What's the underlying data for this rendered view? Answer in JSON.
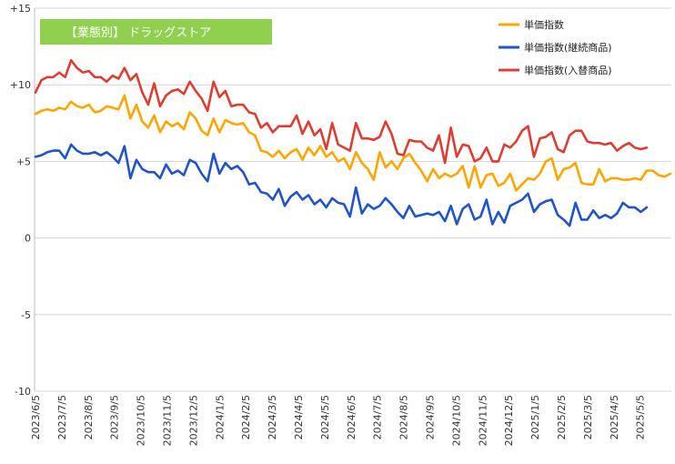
{
  "chart_data": {
    "type": "line",
    "title": "【業態別】 ドラッグストア",
    "title_bg_color": "#8fd14f",
    "ylim": [
      -10,
      15
    ],
    "y_ticks": [
      -10,
      -5,
      0,
      5,
      10,
      15
    ],
    "y_tick_labels": [
      "-10",
      "-5",
      "0",
      "+5",
      "+10",
      "+15"
    ],
    "x_tick_labels": [
      "2023/6/5",
      "2023/7/5",
      "2023/8/5",
      "2023/9/5",
      "2023/10/5",
      "2023/11/5",
      "2023/12/5",
      "2024/1/5",
      "2024/2/5",
      "2024/3/5",
      "2024/4/5",
      "2024/5/5",
      "2024/6/5",
      "2024/7/5",
      "2024/8/5",
      "2024/9/5",
      "2024/10/5",
      "2024/11/5",
      "2024/12/5",
      "2025/1/5",
      "2025/2/5",
      "2025/3/5",
      "2025/4/5",
      "2025/5/5"
    ],
    "grid": "horizontal",
    "legend_position": "top-right",
    "series": [
      {
        "name": "単価指数",
        "color": "#ffa500",
        "values": [
          8.1,
          8.3,
          8.4,
          8.3,
          8.5,
          8.4,
          8.9,
          8.6,
          8.5,
          8.7,
          8.2,
          8.3,
          8.6,
          8.5,
          8.4,
          9.3,
          7.8,
          8.7,
          7.6,
          7.2,
          8.0,
          6.9,
          7.6,
          7.3,
          7.5,
          7.1,
          8.2,
          7.8,
          7.0,
          6.7,
          7.8,
          6.9,
          7.7,
          7.5,
          7.4,
          7.5,
          6.9,
          6.7,
          5.7,
          5.6,
          5.3,
          5.7,
          5.2,
          5.6,
          5.8,
          5.1,
          5.9,
          5.4,
          6.0,
          5.3,
          5.6,
          5.0,
          5.2,
          4.5,
          5.6,
          4.9,
          4.5,
          3.8,
          5.6,
          4.6,
          5.0,
          4.5,
          5.2,
          5.5,
          4.9,
          4.4,
          3.7,
          4.5,
          3.9,
          4.2,
          4.0,
          4.2,
          4.7,
          3.3,
          4.7,
          3.3,
          4.1,
          4.2,
          3.4,
          3.6,
          4.2,
          3.1,
          3.5,
          3.9,
          3.8,
          4.2,
          5.0,
          5.2,
          3.8,
          4.5,
          4.6,
          4.9,
          3.6,
          3.5,
          3.5,
          4.5,
          3.7,
          3.9,
          3.9,
          3.8,
          3.8,
          3.9,
          3.8,
          4.4,
          4.4,
          4.1,
          4.0,
          4.2
        ]
      },
      {
        "name": "単価指数(継続商品)",
        "color": "#1f55c8",
        "values": [
          5.3,
          5.4,
          5.6,
          5.7,
          5.7,
          5.2,
          6.1,
          5.7,
          5.5,
          5.5,
          5.6,
          5.4,
          5.6,
          5.3,
          4.9,
          6.0,
          3.9,
          5.1,
          4.5,
          4.3,
          4.3,
          3.9,
          4.8,
          4.2,
          4.4,
          4.1,
          5.1,
          4.9,
          4.2,
          3.7,
          5.5,
          4.2,
          4.9,
          4.5,
          4.7,
          4.3,
          3.5,
          3.6,
          3.0,
          2.9,
          2.5,
          3.2,
          2.1,
          2.7,
          3.0,
          2.5,
          2.8,
          2.2,
          2.5,
          2.0,
          2.6,
          2.3,
          2.2,
          1.4,
          3.3,
          1.6,
          2.2,
          1.9,
          2.1,
          2.6,
          2.2,
          1.7,
          1.3,
          2.1,
          1.4,
          1.5,
          1.6,
          1.5,
          1.7,
          1.1,
          2.1,
          0.9,
          1.9,
          2.2,
          1.2,
          1.4,
          2.5,
          0.9,
          1.7,
          1.0,
          2.1,
          2.3,
          2.5,
          2.9,
          1.7,
          2.2,
          2.4,
          2.5,
          1.5,
          1.2,
          0.8,
          2.3,
          1.2,
          1.2,
          1.8,
          1.3,
          1.5,
          1.3,
          1.6,
          2.3,
          2.0,
          2.0,
          1.7,
          2.0
        ]
      },
      {
        "name": "単価指数(入替商品)",
        "color": "#e03c31",
        "values": [
          9.5,
          10.3,
          10.5,
          10.5,
          10.8,
          10.5,
          11.6,
          11.1,
          10.8,
          10.9,
          10.5,
          10.5,
          10.2,
          10.6,
          10.4,
          11.1,
          10.3,
          10.7,
          9.5,
          8.7,
          10.1,
          8.6,
          9.3,
          9.6,
          9.7,
          9.4,
          10.2,
          9.6,
          9.1,
          8.3,
          10.2,
          9.2,
          9.6,
          8.6,
          8.7,
          8.7,
          8.2,
          8.1,
          7.2,
          7.5,
          6.9,
          7.3,
          7.3,
          7.3,
          8.0,
          6.8,
          7.6,
          6.7,
          7.1,
          5.8,
          7.5,
          6.1,
          5.9,
          5.7,
          7.5,
          6.5,
          6.5,
          6.4,
          6.6,
          7.6,
          6.8,
          5.5,
          5.4,
          6.4,
          6.3,
          6.3,
          5.9,
          5.7,
          6.7,
          4.9,
          7.2,
          5.3,
          6.1,
          6.0,
          5.0,
          5.2,
          5.9,
          5.0,
          5.0,
          6.1,
          5.9,
          6.3,
          7.0,
          7.3,
          5.3,
          6.5,
          6.6,
          6.9,
          5.8,
          5.6,
          6.7,
          7.0,
          7.0,
          6.3,
          6.2,
          6.2,
          6.1,
          6.2,
          5.7,
          6.0,
          6.2,
          5.9,
          5.8,
          5.9
        ]
      }
    ]
  }
}
